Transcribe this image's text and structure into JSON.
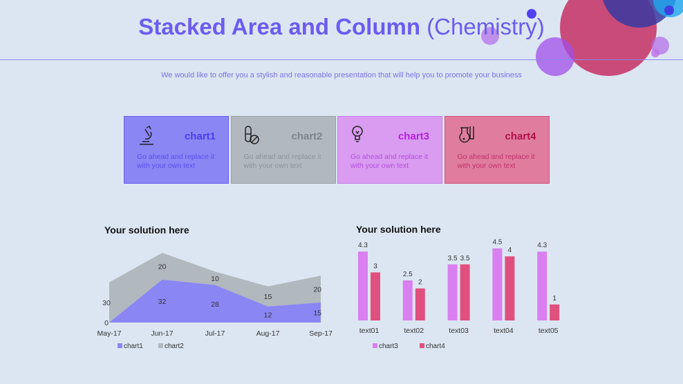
{
  "header": {
    "title_bold": "Stacked Area and Column",
    "title_normal": "(Chemistry)",
    "subtitle": "We would like to offer you a stylish and reasonable presentation that will help you to promote your business"
  },
  "cards": [
    {
      "title": "chart1",
      "text": "Go ahead and replace it with your own text",
      "icon": "microscope-icon",
      "bg": "#8a86f4",
      "border": "#6b5cf0",
      "title_color": "#4c3ef0",
      "text_color": "#5a4ef0"
    },
    {
      "title": "chart2",
      "text": "Go ahead and replace it with your own text",
      "icon": "pills-icon",
      "bg": "#b1b8be",
      "border": "#9aa2a8",
      "title_color": "#7d868c",
      "text_color": "#8c949a"
    },
    {
      "title": "chart3",
      "text": "Go ahead and replace it with your own text",
      "icon": "lightbulb-icon",
      "bg": "#d99cf0",
      "border": "#c77de8",
      "title_color": "#b620e0",
      "text_color": "#b64de0"
    },
    {
      "title": "chart4",
      "text": "Go ahead and replace it with your own text",
      "icon": "flask-icon",
      "bg": "#e07d9e",
      "border": "#d4507a",
      "title_color": "#b0104a",
      "text_color": "#c0306a"
    }
  ],
  "chart_data": [
    {
      "type": "area",
      "stacked": true,
      "title": "Your solution here",
      "categories": [
        "May-17",
        "Jun-17",
        "Jul-17",
        "Aug-17",
        "Sep-17"
      ],
      "series": [
        {
          "name": "chart1",
          "values": [
            0,
            32,
            28,
            12,
            15
          ],
          "color": "#8a86f4"
        },
        {
          "name": "chart2",
          "values": [
            30,
            20,
            10,
            15,
            20
          ],
          "color": "#b1b8be"
        }
      ],
      "legend": "bottom-left",
      "grid": false
    },
    {
      "type": "bar",
      "title": "Your solution here",
      "categories": [
        "text01",
        "text02",
        "text03",
        "text04",
        "text05"
      ],
      "series": [
        {
          "name": "chart3",
          "values": [
            4.3,
            2.5,
            3.5,
            4.5,
            4.3
          ],
          "color": "#d97ff0"
        },
        {
          "name": "chart4",
          "values": [
            3,
            2,
            3.5,
            4,
            1
          ],
          "color": "#e0507e"
        }
      ],
      "legend": "bottom-left",
      "grid": false
    }
  ]
}
